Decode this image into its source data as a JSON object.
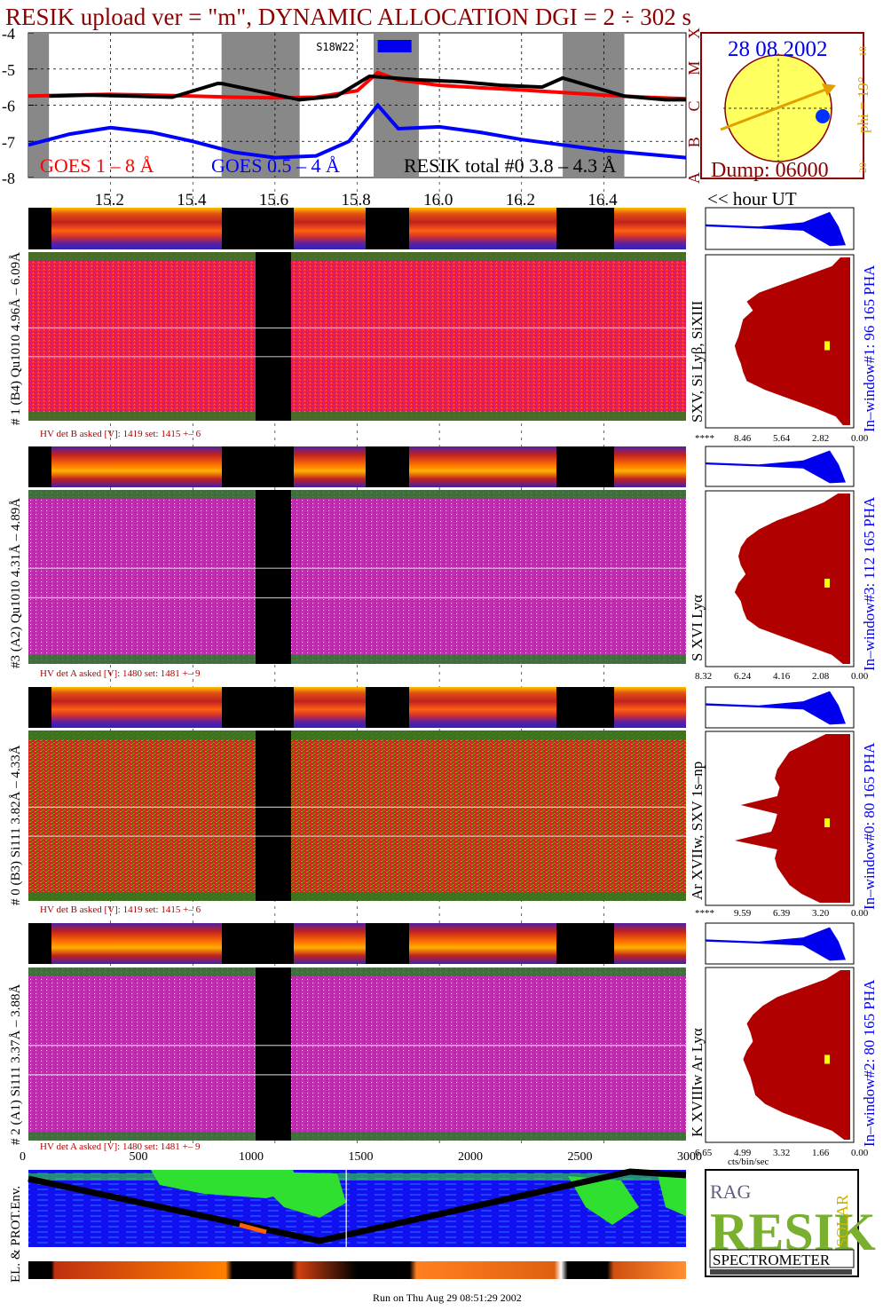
{
  "title": "RESIK upload ver = \"m\", DYNAMIC ALLOCATION  DGI =   2 ÷ 302 s",
  "colors": {
    "title": "#8b0000",
    "goes_long": "#ff0000",
    "goes_short": "#0000ff",
    "resik": "#000000",
    "dark_red": "#b00000",
    "pha": "#0000ee",
    "spectrum_fill": "#b00000",
    "gray": "#888888"
  },
  "chart_data": [
    {
      "type": "line",
      "name": "GOES light curves",
      "ylim": [
        -8,
        -4
      ],
      "ytick_labels": [
        "-4",
        "-5",
        "-6",
        "-7",
        "-8"
      ],
      "goes_class_labels": [
        "X",
        "M",
        "C",
        "B",
        "A"
      ],
      "legend": {
        "goes_long": "GOES 1 – 8 Å",
        "goes_short": "GOES 0.5 – 4 Å",
        "resik": "RESIK total #0  3.8 – 4.3 Å"
      },
      "flag": "S18W22",
      "xlim_hours": [
        15.0,
        16.6
      ],
      "gaps_hours": [
        [
          15.0,
          15.05
        ],
        [
          15.47,
          15.66
        ],
        [
          15.84,
          15.95
        ],
        [
          16.3,
          16.45
        ]
      ],
      "goes_long": {
        "t": [
          15.0,
          15.1,
          15.2,
          15.3,
          15.4,
          15.5,
          15.6,
          15.7,
          15.8,
          15.85,
          15.9,
          16.0,
          16.1,
          16.2,
          16.3,
          16.4,
          16.5,
          16.6
        ],
        "v": [
          -5.75,
          -5.72,
          -5.7,
          -5.72,
          -5.75,
          -5.78,
          -5.8,
          -5.78,
          -5.6,
          -5.1,
          -5.3,
          -5.45,
          -5.52,
          -5.58,
          -5.65,
          -5.72,
          -5.78,
          -5.82
        ]
      },
      "goes_short": {
        "t": [
          15.0,
          15.1,
          15.2,
          15.3,
          15.4,
          15.5,
          15.6,
          15.7,
          15.78,
          15.85,
          15.9,
          16.0,
          16.1,
          16.2,
          16.3,
          16.4,
          16.5,
          16.6
        ],
        "v": [
          -7.1,
          -6.8,
          -6.62,
          -6.75,
          -7.0,
          -7.3,
          -7.45,
          -7.4,
          -7.0,
          -6.0,
          -6.65,
          -6.6,
          -6.75,
          -6.95,
          -7.1,
          -7.25,
          -7.35,
          -7.45
        ]
      },
      "resik_total": {
        "t": [
          15.05,
          15.15,
          15.25,
          15.35,
          15.46,
          15.47,
          15.66,
          15.75,
          15.83,
          15.95,
          16.05,
          16.15,
          16.25,
          16.3,
          16.45,
          16.55,
          16.6
        ],
        "v": [
          -5.75,
          -5.72,
          -5.75,
          -5.78,
          -5.4,
          -5.4,
          -5.85,
          -5.75,
          -5.2,
          -5.3,
          -5.35,
          -5.45,
          -5.5,
          -5.25,
          -5.75,
          -5.85,
          -5.85
        ]
      }
    },
    {
      "type": "heatmap",
      "name": "Time axis",
      "xlabel": "<< hour UT",
      "tick_labels": [
        "15.2",
        "15.4",
        "15.6",
        "15.8",
        "16.0",
        "16.2",
        "16.4"
      ],
      "tick_hours": [
        15.2,
        15.4,
        15.6,
        15.8,
        16.0,
        16.2,
        16.4
      ]
    },
    {
      "type": "bar",
      "name": "Detector spectra",
      "detectors": [
        {
          "label": "# 1 (B4) Qu1010 4.96Å – 6.09Å",
          "lines": "SXV, Si Lyβ, SiXIII",
          "window": "In–window#1:   96 165  PHA",
          "hv": "HV det B asked [V]:  1419 set:  1415  +–   6",
          "xticks": [
            "****",
            "8.46",
            "5.64",
            "2.82",
            "0.00"
          ],
          "profile": [
            0.08,
            0.15,
            0.35,
            0.55,
            0.75,
            0.85,
            0.8,
            0.88,
            0.9,
            0.92,
            0.95,
            0.93,
            0.9,
            0.88,
            0.85,
            0.7,
            0.5,
            0.3,
            0.12,
            0.06
          ]
        },
        {
          "label": "#3 (A2) Qu1010  4.31Å – 4.89Å",
          "lines": "S XVI Lyα",
          "window": "In–window#3:  112 165  PHA",
          "hv": "HV det A asked [V]:  1480 set:  1481  +–   9",
          "xticks": [
            "8.32",
            "6.24",
            "4.16",
            "2.08",
            "0.00"
          ],
          "profile": [
            0.1,
            0.22,
            0.4,
            0.6,
            0.75,
            0.85,
            0.9,
            0.92,
            0.9,
            0.86,
            0.92,
            0.95,
            0.9,
            0.88,
            0.85,
            0.75,
            0.55,
            0.35,
            0.15,
            0.06
          ]
        },
        {
          "label": "# 0 (B3) Si111  3.82Å – 4.33Å",
          "lines": "Ar XVIIw,  SXV 1s–np",
          "window": "In–window#0:   80 165  PHA",
          "hv": "HV det B asked [V]:  1419 set:  1415  +–   6",
          "xticks": [
            "****",
            "9.59",
            "6.39",
            "3.20",
            "0.00"
          ],
          "profile": [
            0.2,
            0.35,
            0.5,
            0.55,
            0.6,
            0.62,
            0.58,
            0.6,
            0.9,
            0.6,
            0.62,
            0.65,
            0.95,
            0.6,
            0.62,
            0.6,
            0.55,
            0.5,
            0.4,
            0.25
          ]
        },
        {
          "label": "# 2 (A1) Si111  3.37Å – 3.88Å",
          "lines": "K XVIIIw  Ar Lyα",
          "window": "In–window#2:   80 165  PHA",
          "hv": "HV det A asked [V]:  1480 set:  1481  +–   9",
          "xticks": [
            "6.65",
            "4.99",
            "3.32",
            "1.66",
            "0.00"
          ],
          "profile": [
            0.08,
            0.2,
            0.4,
            0.6,
            0.72,
            0.8,
            0.85,
            0.82,
            0.8,
            0.85,
            0.88,
            0.85,
            0.82,
            0.8,
            0.78,
            0.7,
            0.55,
            0.35,
            0.15,
            0.05
          ]
        }
      ],
      "spectrum_xlabel": "cts/bin/sec"
    },
    {
      "type": "line",
      "name": "Orbit map",
      "ylabel": "EL. & PROT.Env.",
      "x_tick_labels": [
        "0",
        "500",
        "1000",
        "1500",
        "2000",
        "2500",
        "3000"
      ],
      "xlim": [
        0,
        3000
      ],
      "marker_x": 1450
    }
  ],
  "sun": {
    "date": "28 08 2002",
    "dump": "Dump: 06000",
    "phi": "phi = 19°",
    "scale_top": "18",
    "scale_bottom": "20"
  },
  "logo": {
    "text": "SPECTROMETER",
    "big_letters": "RESIK",
    "small_left": "RAG",
    "small_right": "SOLAR"
  },
  "footer": "Run on Thu Aug 29 08:51:29 2002"
}
